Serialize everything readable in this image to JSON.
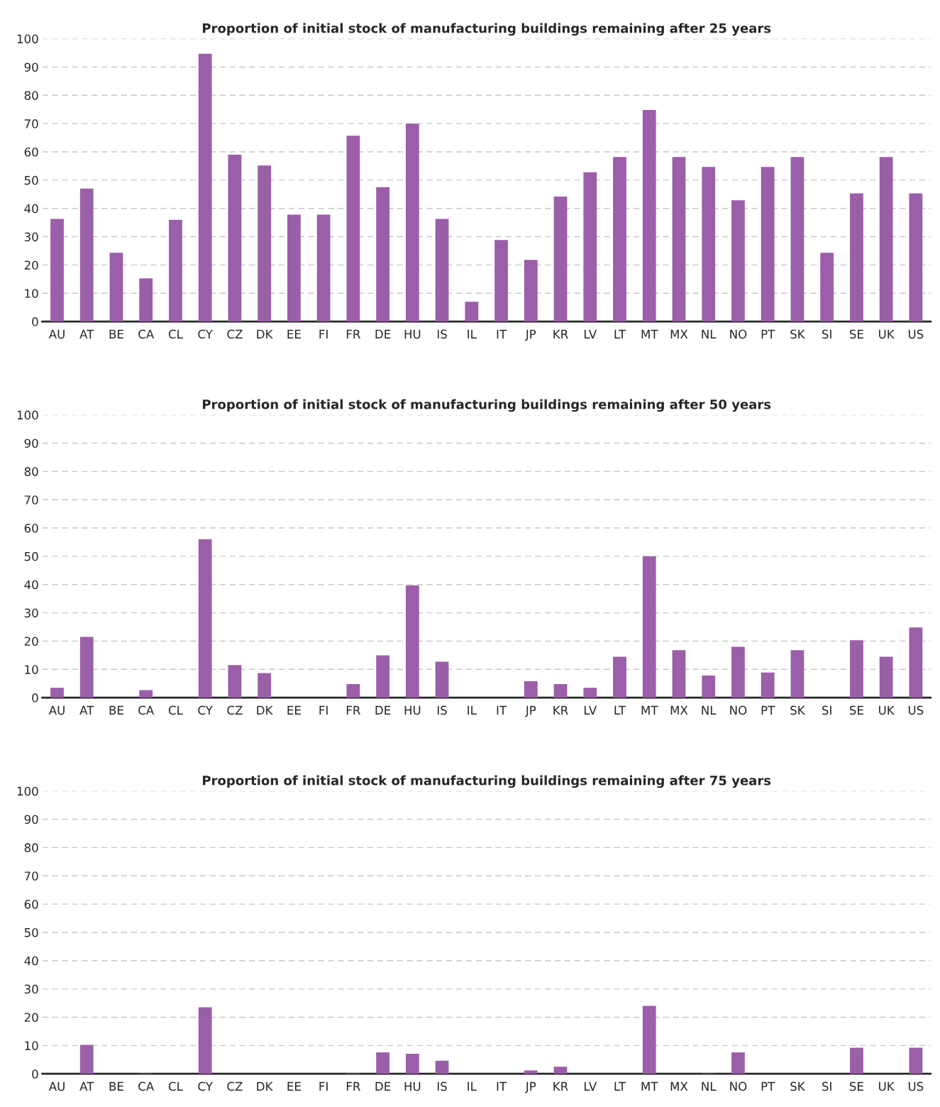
{
  "chart_data": [
    {
      "type": "bar",
      "title": "Proportion of initial stock of manufacturing buildings remaining after 25 years",
      "categories": [
        "AU",
        "AT",
        "BE",
        "CA",
        "CL",
        "CY",
        "CZ",
        "DK",
        "EE",
        "FI",
        "FR",
        "DE",
        "HU",
        "IS",
        "IL",
        "IT",
        "JP",
        "KR",
        "LV",
        "LT",
        "MT",
        "MX",
        "NL",
        "NO",
        "PT",
        "SK",
        "SI",
        "SE",
        "UK",
        "US"
      ],
      "color": "#9b5ea8",
      "values": [
        36.3,
        47,
        24.3,
        15.3,
        36,
        94.7,
        59,
        55.2,
        37.8,
        37.8,
        65.7,
        47.5,
        70,
        36.3,
        7,
        28.8,
        21.8,
        44.2,
        52.8,
        58.2,
        74.8,
        58.2,
        54.7,
        42.9,
        54.7,
        58.2,
        24.3,
        45.3,
        58.2,
        45.3
      ],
      "ylim": [
        0,
        100
      ],
      "yticks": [
        0,
        10,
        20,
        30,
        40,
        50,
        60,
        70,
        80,
        90,
        100
      ],
      "grid": "y"
    },
    {
      "type": "bar",
      "title": "Proportion of initial stock of manufacturing buildings remaining after 50 years",
      "categories": [
        "AU",
        "AT",
        "BE",
        "CA",
        "CL",
        "CY",
        "CZ",
        "DK",
        "EE",
        "FI",
        "FR",
        "DE",
        "HU",
        "IS",
        "IL",
        "IT",
        "JP",
        "KR",
        "LV",
        "LT",
        "MT",
        "MX",
        "NL",
        "NO",
        "PT",
        "SK",
        "SI",
        "SE",
        "UK",
        "US"
      ],
      "color": "#9b5ea8",
      "values": [
        3.5,
        21.5,
        0,
        2.7,
        0,
        56,
        11.5,
        8.7,
        0,
        0,
        4.8,
        15,
        39.7,
        12.7,
        0,
        0,
        5.8,
        4.8,
        3.5,
        14.5,
        50,
        16.8,
        7.8,
        18,
        8.9,
        16.8,
        0,
        20.3,
        14.5,
        24.8
      ],
      "ylim": [
        0,
        100
      ],
      "yticks": [
        0,
        10,
        20,
        30,
        40,
        50,
        60,
        70,
        80,
        90,
        100
      ],
      "grid": "y"
    },
    {
      "type": "bar",
      "title": "Proportion of initial stock of manufacturing buildings remaining after 75 years",
      "categories": [
        "AU",
        "AT",
        "BE",
        "CA",
        "CL",
        "CY",
        "CZ",
        "DK",
        "EE",
        "FI",
        "FR",
        "DE",
        "HU",
        "IS",
        "IL",
        "IT",
        "JP",
        "KR",
        "LV",
        "LT",
        "MT",
        "MX",
        "NL",
        "NO",
        "PT",
        "SK",
        "SI",
        "SE",
        "UK",
        "US"
      ],
      "color": "#9b5ea8",
      "values": [
        0,
        10.2,
        0,
        0.2,
        0,
        23.5,
        0,
        0,
        0,
        0,
        0.2,
        7.6,
        7.1,
        4.6,
        0,
        0,
        1.2,
        2.5,
        0,
        0,
        24,
        0,
        0.2,
        7.6,
        0,
        0,
        0,
        9.2,
        0,
        9.2
      ],
      "ylim": [
        0,
        100
      ],
      "yticks": [
        0,
        10,
        20,
        30,
        40,
        50,
        60,
        70,
        80,
        90,
        100
      ],
      "grid": "y"
    }
  ]
}
